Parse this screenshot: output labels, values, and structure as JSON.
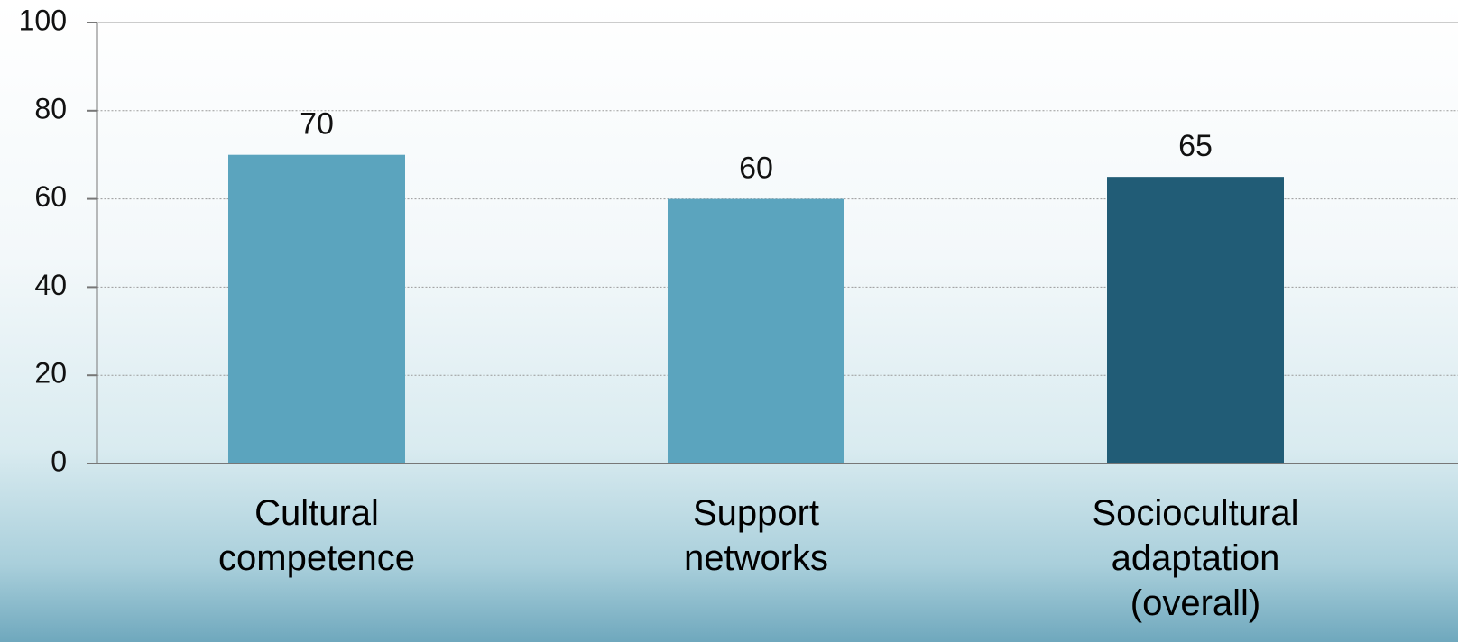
{
  "chart_data": {
    "type": "bar",
    "categories": [
      "Cultural competence",
      "Support networks",
      "Sociocultural adaptation (overall)"
    ],
    "values": [
      70,
      60,
      65
    ],
    "colors": [
      "#5ba4be",
      "#5ba4be",
      "#215c76"
    ],
    "ylim": [
      0,
      100
    ],
    "yticks": [
      0,
      20,
      40,
      60,
      80,
      100
    ],
    "grid": true
  }
}
